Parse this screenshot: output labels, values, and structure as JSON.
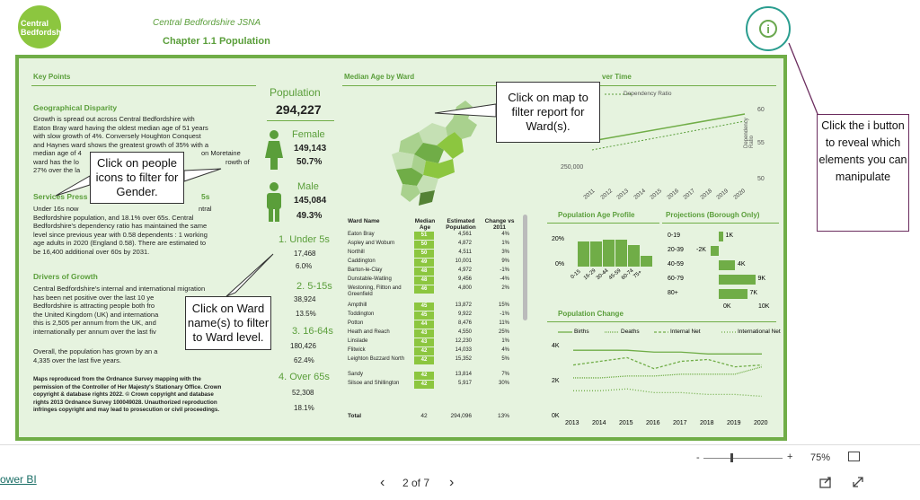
{
  "header": {
    "logo_text": "Central Bedfordshire",
    "title": "Central Bedfordshire JSNA",
    "chapter": "Chapter 1.1 Population"
  },
  "info_button": {
    "icon": "info-icon",
    "glyph": "i"
  },
  "key_points": {
    "title": "Key Points",
    "geo_head": "Geographical Disparity",
    "geo_lines": [
      "Growth is spread out across Central Bedfordshire with",
      "Eaton Bray ward having the oldest median age of 51 years",
      "with slow growth of 4%.  Conversely Houghton Conquest",
      "and Haynes ward shows the greatest growth of 35% with a",
      "median age of 4",
      "ward has the lo",
      "27% over the la"
    ],
    "geo_right_1": "on Moretaine",
    "geo_right_2": "rowth of",
    "services_head": "Services Press",
    "services_tail": "5s",
    "services_lines": [
      "Under 16s now",
      "Bedfordshire population, and 18.1% over 65s.  Central",
      "Bedfordshire's dependency ratio has  maintained the same",
      "level since previous year with 0.58 dependents : 1 working",
      "age adults in 2020 (England 0.58).  There are estimated to",
      "be 16,400 additional over 60s by 2031."
    ],
    "services_right": "ntral",
    "drivers_head": "Drivers of Growth",
    "drivers_lines": [
      "Central Bedfordshire's internal and international migration",
      "has been net positive over the last 10 ye",
      "Bedfordshire is attracting people both fro",
      "the United Kingdom (UK) and internationa",
      "this is 2,505 per annum from the UK, and",
      "internationally per annum over the last fiv"
    ],
    "overall_lines": [
      "Overall, the population has grown by an a",
      "4,335 over the last five years."
    ],
    "maps_lines": [
      "Maps reproduced from the Ordnance Survey mapping with the",
      "permission of the Controller of Her Majesty's Stationary Office.  Crown",
      "copyright & database rights 2022.  © Crown copyright and database",
      "rights 2013 Ordnance Survey 100049028.  Unauthorized reproduction",
      "infringes copyright and may lead to prosecution or civil proceedings."
    ]
  },
  "population": {
    "label": "Population",
    "total": "294,227",
    "female_label": "Female",
    "female_count": "149,143",
    "female_pct": "50.7%",
    "male_label": "Male",
    "male_count": "145,084",
    "male_pct": "49.3%",
    "under5_label": "1. Under 5s",
    "under5_count": "17,468",
    "under5_pct": "6.0%",
    "age515_label": "2. 5-15s",
    "age515_count": "38,924",
    "age515_pct": "13.5%",
    "age1664_label": "3. 16-64s",
    "age1664_count": "180,426",
    "age1664_pct": "62.4%",
    "over65_label": "4. Over 65s",
    "over65_count": "52,308",
    "over65_pct": "18.1%"
  },
  "median_age": {
    "title": "Median Age by Ward",
    "col_ward": "Ward Name",
    "col_age": "Median Age",
    "col_pop": "Estimated Population",
    "col_chg": "Change vs 2011",
    "rows": [
      {
        "ward": "Eaton Bray",
        "age": "51",
        "pop": "4,561",
        "chg": "4%"
      },
      {
        "ward": "Aspley and Woburn",
        "age": "50",
        "pop": "4,872",
        "chg": "1%"
      },
      {
        "ward": "Northill",
        "age": "50",
        "pop": "4,511",
        "chg": "3%"
      },
      {
        "ward": "Caddington",
        "age": "49",
        "pop": "10,001",
        "chg": "9%"
      },
      {
        "ward": "Barton-le-Clay",
        "age": "48",
        "pop": "4,972",
        "chg": "-1%"
      },
      {
        "ward": "Dunstable-Watling",
        "age": "48",
        "pop": "9,456",
        "chg": "-4%"
      },
      {
        "ward": "Westoning, Flitton and Greenfield",
        "age": "46",
        "pop": "4,800",
        "chg": "2%"
      },
      {
        "ward": "Ampthill",
        "age": "45",
        "pop": "13,872",
        "chg": "15%"
      },
      {
        "ward": "Toddington",
        "age": "45",
        "pop": "9,922",
        "chg": "-1%"
      },
      {
        "ward": "Potton",
        "age": "44",
        "pop": "8,476",
        "chg": "11%"
      },
      {
        "ward": "Heath and Reach",
        "age": "43",
        "pop": "4,550",
        "chg": "25%"
      },
      {
        "ward": "Linslade",
        "age": "43",
        "pop": "12,230",
        "chg": "1%"
      },
      {
        "ward": "Flitwick",
        "age": "42",
        "pop": "14,033",
        "chg": "4%"
      },
      {
        "ward": "Leighton Buzzard North",
        "age": "42",
        "pop": "15,352",
        "chg": "5%"
      },
      {
        "ward": "Sandy",
        "age": "42",
        "pop": "13,814",
        "chg": "7%"
      },
      {
        "ward": "Silsoe and Shillington",
        "age": "42",
        "pop": "5,917",
        "chg": "30%"
      }
    ],
    "total_label": "Total",
    "total_age": "42",
    "total_pop": "294,096",
    "total_chg": "13%"
  },
  "dependency": {
    "title_tail": "ver Time",
    "legend": "Dependency Ratio",
    "y_left": "250,000",
    "y_right": [
      "60",
      "55",
      "50"
    ],
    "y_right_label": "Dependency Ratio",
    "x_ticks": [
      "2011",
      "2012",
      "2013",
      "2014",
      "2015",
      "2016",
      "2017",
      "2018",
      "2019",
      "2020"
    ]
  },
  "age_profile": {
    "title": "Population Age Profile",
    "y_ticks": [
      "20%",
      "0%"
    ],
    "x_labels": [
      "0-15",
      "16-29",
      "30-44",
      "45-59",
      "60-74",
      "75+"
    ],
    "values": [
      14,
      14,
      15,
      15,
      12,
      6
    ]
  },
  "projections": {
    "title": "Projections (Borough Only)",
    "categories": [
      "0-19",
      "20-39",
      "40-59",
      "60-79",
      "80+"
    ],
    "values": [
      1,
      -2,
      4,
      9,
      7
    ],
    "labels": [
      "1K",
      "-2K",
      "4K",
      "9K",
      "7K"
    ],
    "x_ticks": [
      "0K",
      "10K"
    ]
  },
  "pop_change": {
    "title": "Population Change",
    "legend": [
      "Births",
      "Deaths",
      "Internal Net",
      "International Net"
    ],
    "y_ticks": [
      "4K",
      "2K",
      "0K"
    ],
    "x_ticks": [
      "2013",
      "2014",
      "2015",
      "2016",
      "2017",
      "2018",
      "2019",
      "2020"
    ]
  },
  "chart_data": [
    {
      "type": "bar",
      "title": "Population Age Profile",
      "categories": [
        "0-15",
        "16-29",
        "30-44",
        "45-59",
        "60-74",
        "75+"
      ],
      "values": [
        14,
        14,
        15,
        15,
        12,
        6
      ],
      "ylim": [
        0,
        20
      ]
    },
    {
      "type": "bar",
      "title": "Projections (Borough Only)",
      "categories": [
        "0-19",
        "20-39",
        "40-59",
        "60-79",
        "80+"
      ],
      "values": [
        1,
        -2,
        4,
        9,
        7
      ]
    },
    {
      "type": "line",
      "title": "Population Change",
      "x": [
        2013,
        2014,
        2015,
        2016,
        2017,
        2018,
        2019,
        2020
      ],
      "series": [
        {
          "name": "Births",
          "values": [
            3.6,
            3.6,
            3.6,
            3.5,
            3.5,
            3.4,
            3.4,
            3.4
          ]
        },
        {
          "name": "Deaths",
          "values": [
            2.1,
            2.1,
            2.2,
            2.2,
            2.3,
            2.3,
            2.3,
            2.7
          ]
        },
        {
          "name": "Internal Net",
          "values": [
            2.8,
            3.0,
            3.2,
            2.6,
            3.0,
            3.1,
            2.7,
            2.8
          ]
        },
        {
          "name": "International Net",
          "values": [
            1.4,
            1.4,
            1.5,
            1.3,
            1.3,
            1.2,
            1.2,
            1.1
          ]
        }
      ],
      "ylim": [
        0,
        4
      ]
    }
  ],
  "callouts": {
    "map": "Click on map to filter report for Ward(s).",
    "gender": "Click on people icons to filter for Gender.",
    "ward": "Click on Ward name(s) to filter to Ward level.",
    "side_note": "Click the i button to reveal which elements you can manipulate"
  },
  "bottom_bar": {
    "zoom_minus": "-",
    "zoom_plus": "+",
    "zoom_level": "75%",
    "page_label": "2 of 7",
    "prev": "‹",
    "next": "›",
    "powerbi_link": "ower BI"
  }
}
